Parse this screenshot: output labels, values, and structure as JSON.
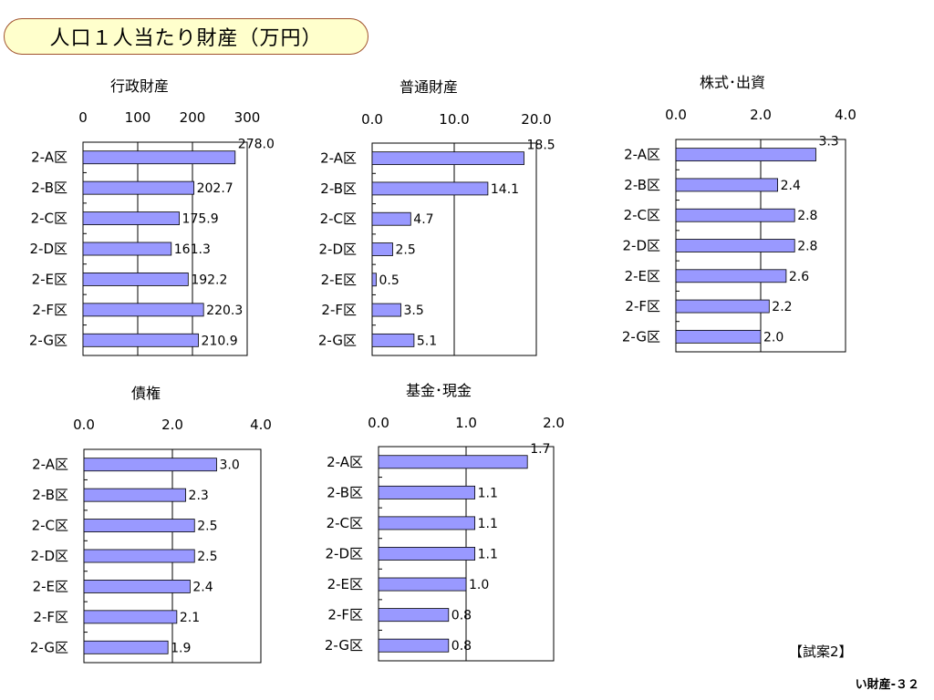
{
  "title": "人口１人当たり財産（万円）",
  "footer_tag": "【試案2】",
  "page_id": "い財産-３２",
  "chart_data": [
    {
      "type": "bar",
      "title": "行政財産",
      "categories": [
        "2-A区",
        "2-B区",
        "2-C区",
        "2-D区",
        "2-E区",
        "2-F区",
        "2-G区"
      ],
      "values": [
        278.0,
        202.7,
        175.9,
        161.3,
        192.2,
        220.3,
        210.9
      ],
      "value_labels": [
        "278.0",
        "202.7",
        "175.9",
        "161.3",
        "192.2",
        "220.3",
        "210.9"
      ],
      "xlim": [
        0,
        300
      ],
      "ticks": [
        "0",
        "100",
        "200",
        "300"
      ],
      "grid": true
    },
    {
      "type": "bar",
      "title": "普通財産",
      "categories": [
        "2-A区",
        "2-B区",
        "2-C区",
        "2-D区",
        "2-E区",
        "2-F区",
        "2-G区"
      ],
      "values": [
        18.5,
        14.1,
        4.7,
        2.5,
        0.5,
        3.5,
        5.1
      ],
      "value_labels": [
        "18.5",
        "14.1",
        "4.7",
        "2.5",
        "0.5",
        "3.5",
        "5.1"
      ],
      "xlim": [
        0,
        20
      ],
      "ticks": [
        "0.0",
        "10.0",
        "20.0"
      ],
      "grid": true
    },
    {
      "type": "bar",
      "title": "株式･出資",
      "categories": [
        "2-A区",
        "2-B区",
        "2-C区",
        "2-D区",
        "2-E区",
        "2-F区",
        "2-G区"
      ],
      "values": [
        3.3,
        2.4,
        2.8,
        2.8,
        2.6,
        2.2,
        2.0
      ],
      "value_labels": [
        "3.3",
        "2.4",
        "2.8",
        "2.8",
        "2.6",
        "2.2",
        "2.0"
      ],
      "xlim": [
        0,
        4
      ],
      "ticks": [
        "0.0",
        "2.0",
        "4.0"
      ],
      "grid": true
    },
    {
      "type": "bar",
      "title": "債権",
      "categories": [
        "2-A区",
        "2-B区",
        "2-C区",
        "2-D区",
        "2-E区",
        "2-F区",
        "2-G区"
      ],
      "values": [
        3.0,
        2.3,
        2.5,
        2.5,
        2.4,
        2.1,
        1.9
      ],
      "value_labels": [
        "3.0",
        "2.3",
        "2.5",
        "2.5",
        "2.4",
        "2.1",
        "1.9"
      ],
      "xlim": [
        0,
        4
      ],
      "ticks": [
        "0.0",
        "2.0",
        "4.0"
      ],
      "grid": true
    },
    {
      "type": "bar",
      "title": "基金･現金",
      "categories": [
        "2-A区",
        "2-B区",
        "2-C区",
        "2-D区",
        "2-E区",
        "2-F区",
        "2-G区"
      ],
      "values": [
        1.7,
        1.1,
        1.1,
        1.1,
        1.0,
        0.8,
        0.8
      ],
      "value_labels": [
        "1.7",
        "1.1",
        "1.1",
        "1.1",
        "1.0",
        "0.8",
        "0.8"
      ],
      "xlim": [
        0,
        2
      ],
      "ticks": [
        "0.0",
        "1.0",
        "2.0"
      ],
      "grid": true
    }
  ]
}
